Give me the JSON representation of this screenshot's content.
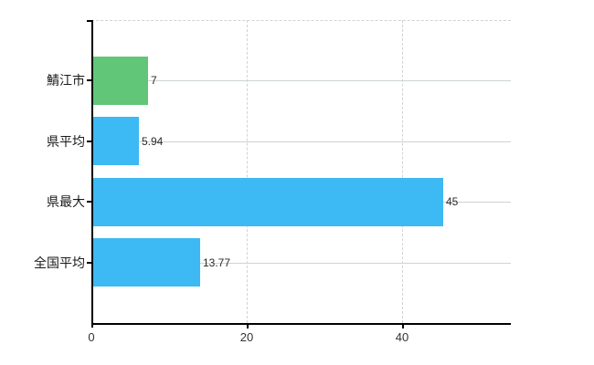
{
  "chart_data": {
    "type": "bar",
    "orientation": "horizontal",
    "title": "",
    "xlabel": "",
    "ylabel": "",
    "categories": [
      "鯖江市",
      "県平均",
      "県最大",
      "全国平均"
    ],
    "values": [
      7,
      5.94,
      45,
      13.77
    ],
    "value_labels": [
      "7",
      "5.94",
      "45",
      "13.77"
    ],
    "bar_colors": [
      "#62c678",
      "#3db9f4",
      "#3db9f4",
      "#3db9f4"
    ],
    "x_ticks": [
      0,
      20,
      40
    ],
    "x_tick_labels": [
      "0",
      "20",
      "40"
    ],
    "xlim": [
      0,
      54
    ],
    "grid": "on",
    "legend": "none",
    "colors": {
      "highlight_bar": "#62c678",
      "default_bar": "#3db9f4",
      "horizontal_gridline": "#ccd5cc",
      "dashed_gridline": "#d2d2d2",
      "axis": "#000000",
      "category_text": "#1a1a1a",
      "value_text": "#2a2a2a",
      "tick_text": "#333333",
      "background": "#ffffff"
    }
  }
}
